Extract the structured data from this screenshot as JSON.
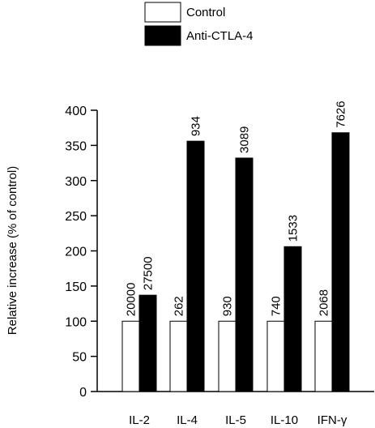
{
  "chart_data": {
    "type": "bar",
    "categories": [
      "IL-2",
      "IL-4",
      "IL-5",
      "IL-10",
      "IFN-γ"
    ],
    "series": [
      {
        "name": "Control",
        "values": [
          100,
          100,
          100,
          100,
          100
        ],
        "data_labels": [
          "20000",
          "262",
          "930",
          "740",
          "2068"
        ],
        "color": "#ffffff"
      },
      {
        "name": "Anti-CTLA-4",
        "values": [
          137,
          356,
          332,
          206,
          368
        ],
        "data_labels": [
          "27500",
          "934",
          "3089",
          "1533",
          "7626"
        ],
        "color": "#000000"
      }
    ],
    "title": "",
    "xlabel": "",
    "ylabel": "Relative increase (% of control)",
    "ylim": [
      0,
      400
    ],
    "yticks": [
      "0",
      "50",
      "100",
      "150",
      "200",
      "250",
      "300",
      "350",
      "400"
    ],
    "grid": false,
    "legend_position": "top"
  }
}
